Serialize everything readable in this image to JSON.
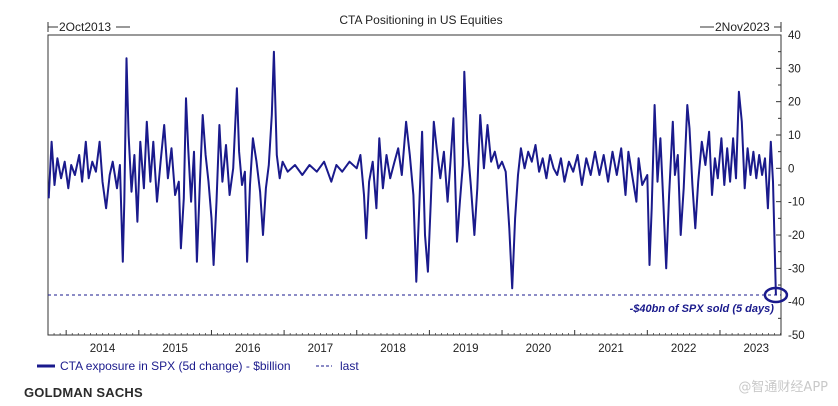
{
  "chart_data": {
    "type": "line",
    "title": "CTA Positioning in US Equities",
    "date_range": {
      "start": "2Oct2013",
      "end": "2Nov2023"
    },
    "xlabel": "",
    "ylabel": "",
    "x_tick_labels": [
      "2014",
      "2015",
      "2016",
      "2017",
      "2018",
      "2019",
      "2020",
      "2021",
      "2022",
      "2023"
    ],
    "y_tick_labels": [
      "40",
      "30",
      "20",
      "10",
      "0",
      "-10",
      "-20",
      "-30",
      "-40",
      "-50"
    ],
    "ylim": [
      -50,
      40
    ],
    "xlim": [
      2013.75,
      2023.84
    ],
    "grid": false,
    "legend_position": "bottom-left",
    "series": [
      {
        "name": "CTA exposure in SPX (5d change) - $billion",
        "color": "#1a1a8c",
        "style": "solid",
        "points": [
          [
            2013.76,
            -9
          ],
          [
            2013.8,
            8
          ],
          [
            2013.84,
            -5
          ],
          [
            2013.88,
            3
          ],
          [
            2013.93,
            -3
          ],
          [
            2013.98,
            2
          ],
          [
            2014.03,
            -6
          ],
          [
            2014.07,
            1
          ],
          [
            2014.12,
            -2
          ],
          [
            2014.18,
            4
          ],
          [
            2014.22,
            -4
          ],
          [
            2014.27,
            8
          ],
          [
            2014.31,
            -3
          ],
          [
            2014.36,
            2
          ],
          [
            2014.41,
            -1
          ],
          [
            2014.46,
            8
          ],
          [
            2014.5,
            -4
          ],
          [
            2014.55,
            -12
          ],
          [
            2014.6,
            -2
          ],
          [
            2014.64,
            2
          ],
          [
            2014.7,
            -6
          ],
          [
            2014.74,
            1
          ],
          [
            2014.78,
            -28
          ],
          [
            2014.8,
            -10
          ],
          [
            2014.83,
            33
          ],
          [
            2014.86,
            10
          ],
          [
            2014.9,
            -7
          ],
          [
            2014.94,
            4
          ],
          [
            2014.98,
            -16
          ],
          [
            2015.02,
            8
          ],
          [
            2015.07,
            -6
          ],
          [
            2015.11,
            14
          ],
          [
            2015.16,
            -4
          ],
          [
            2015.2,
            8
          ],
          [
            2015.25,
            -10
          ],
          [
            2015.3,
            2
          ],
          [
            2015.35,
            13
          ],
          [
            2015.4,
            -3
          ],
          [
            2015.45,
            6
          ],
          [
            2015.5,
            -8
          ],
          [
            2015.55,
            -4
          ],
          [
            2015.58,
            -24
          ],
          [
            2015.62,
            -9
          ],
          [
            2015.65,
            21
          ],
          [
            2015.68,
            6
          ],
          [
            2015.72,
            -10
          ],
          [
            2015.76,
            5
          ],
          [
            2015.8,
            -28
          ],
          [
            2015.84,
            -5
          ],
          [
            2015.88,
            16
          ],
          [
            2015.92,
            4
          ],
          [
            2015.96,
            -4
          ],
          [
            2016.0,
            -15
          ],
          [
            2016.03,
            -29
          ],
          [
            2016.07,
            -10
          ],
          [
            2016.11,
            13
          ],
          [
            2016.15,
            -4
          ],
          [
            2016.2,
            7
          ],
          [
            2016.25,
            -8
          ],
          [
            2016.3,
            0
          ],
          [
            2016.35,
            24
          ],
          [
            2016.38,
            5
          ],
          [
            2016.42,
            -5
          ],
          [
            2016.46,
            -1
          ],
          [
            2016.49,
            -28
          ],
          [
            2016.53,
            -5
          ],
          [
            2016.57,
            9
          ],
          [
            2016.62,
            2
          ],
          [
            2016.67,
            -7
          ],
          [
            2016.71,
            -20
          ],
          [
            2016.75,
            -6
          ],
          [
            2016.79,
            1
          ],
          [
            2016.83,
            16
          ],
          [
            2016.86,
            35
          ],
          [
            2016.9,
            4
          ],
          [
            2016.94,
            -3
          ],
          [
            2016.98,
            2
          ],
          [
            2017.05,
            -1
          ],
          [
            2017.15,
            1
          ],
          [
            2017.25,
            -2
          ],
          [
            2017.35,
            1
          ],
          [
            2017.45,
            -1
          ],
          [
            2017.55,
            2
          ],
          [
            2017.65,
            -4
          ],
          [
            2017.72,
            1
          ],
          [
            2017.8,
            -1
          ],
          [
            2017.9,
            2
          ],
          [
            2018.0,
            0
          ],
          [
            2018.05,
            4
          ],
          [
            2018.1,
            -8
          ],
          [
            2018.13,
            -21
          ],
          [
            2018.17,
            -4
          ],
          [
            2018.22,
            2
          ],
          [
            2018.27,
            -12
          ],
          [
            2018.31,
            9
          ],
          [
            2018.36,
            -6
          ],
          [
            2018.41,
            4
          ],
          [
            2018.46,
            -3
          ],
          [
            2018.52,
            2
          ],
          [
            2018.57,
            6
          ],
          [
            2018.62,
            -2
          ],
          [
            2018.68,
            14
          ],
          [
            2018.73,
            4
          ],
          [
            2018.78,
            -8
          ],
          [
            2018.82,
            -34
          ],
          [
            2018.86,
            -12
          ],
          [
            2018.9,
            11
          ],
          [
            2018.94,
            -20
          ],
          [
            2018.98,
            -31
          ],
          [
            2019.02,
            -10
          ],
          [
            2019.06,
            14
          ],
          [
            2019.1,
            6
          ],
          [
            2019.15,
            -3
          ],
          [
            2019.2,
            5
          ],
          [
            2019.25,
            -10
          ],
          [
            2019.29,
            2
          ],
          [
            2019.33,
            15
          ],
          [
            2019.38,
            -22
          ],
          [
            2019.42,
            -10
          ],
          [
            2019.46,
            1
          ],
          [
            2019.48,
            29
          ],
          [
            2019.52,
            8
          ],
          [
            2019.57,
            -5
          ],
          [
            2019.62,
            -20
          ],
          [
            2019.66,
            -6
          ],
          [
            2019.7,
            16
          ],
          [
            2019.75,
            0
          ],
          [
            2019.8,
            13
          ],
          [
            2019.85,
            2
          ],
          [
            2019.9,
            5
          ],
          [
            2019.95,
            0
          ],
          [
            2020.0,
            2
          ],
          [
            2020.05,
            -1
          ],
          [
            2020.1,
            -18
          ],
          [
            2020.14,
            -36
          ],
          [
            2020.18,
            -15
          ],
          [
            2020.22,
            -2
          ],
          [
            2020.26,
            6
          ],
          [
            2020.31,
            0
          ],
          [
            2020.36,
            5
          ],
          [
            2020.41,
            2
          ],
          [
            2020.46,
            7
          ],
          [
            2020.51,
            -1
          ],
          [
            2020.56,
            3
          ],
          [
            2020.61,
            -3
          ],
          [
            2020.66,
            4
          ],
          [
            2020.71,
            0
          ],
          [
            2020.76,
            -2
          ],
          [
            2020.81,
            3
          ],
          [
            2020.86,
            -4
          ],
          [
            2020.92,
            2
          ],
          [
            2020.98,
            -1
          ],
          [
            2021.04,
            4
          ],
          [
            2021.1,
            -5
          ],
          [
            2021.16,
            3
          ],
          [
            2021.22,
            -2
          ],
          [
            2021.28,
            5
          ],
          [
            2021.34,
            -2
          ],
          [
            2021.4,
            4
          ],
          [
            2021.46,
            -4
          ],
          [
            2021.52,
            5
          ],
          [
            2021.58,
            -2
          ],
          [
            2021.64,
            6
          ],
          [
            2021.7,
            -8
          ],
          [
            2021.74,
            5
          ],
          [
            2021.79,
            -2
          ],
          [
            2021.85,
            -10
          ],
          [
            2021.88,
            3
          ],
          [
            2021.93,
            -5
          ],
          [
            2022.0,
            -2
          ],
          [
            2022.03,
            -29
          ],
          [
            2022.06,
            -12
          ],
          [
            2022.1,
            19
          ],
          [
            2022.14,
            -4
          ],
          [
            2022.18,
            9
          ],
          [
            2022.22,
            -10
          ],
          [
            2022.26,
            -30
          ],
          [
            2022.3,
            -8
          ],
          [
            2022.35,
            14
          ],
          [
            2022.38,
            -2
          ],
          [
            2022.42,
            4
          ],
          [
            2022.46,
            -20
          ],
          [
            2022.5,
            -6
          ],
          [
            2022.55,
            19
          ],
          [
            2022.58,
            12
          ],
          [
            2022.62,
            -5
          ],
          [
            2022.66,
            -18
          ],
          [
            2022.7,
            -4
          ],
          [
            2022.75,
            8
          ],
          [
            2022.8,
            1
          ],
          [
            2022.85,
            11
          ],
          [
            2022.89,
            -8
          ],
          [
            2022.93,
            3
          ],
          [
            2022.97,
            -3
          ],
          [
            2023.02,
            9
          ],
          [
            2023.06,
            -5
          ],
          [
            2023.1,
            6
          ],
          [
            2023.14,
            -4
          ],
          [
            2023.18,
            9
          ],
          [
            2023.22,
            -3
          ],
          [
            2023.26,
            23
          ],
          [
            2023.3,
            14
          ],
          [
            2023.34,
            -6
          ],
          [
            2023.38,
            6
          ],
          [
            2023.42,
            -2
          ],
          [
            2023.46,
            5
          ],
          [
            2023.5,
            -3
          ],
          [
            2023.54,
            4
          ],
          [
            2023.58,
            -2
          ],
          [
            2023.62,
            3
          ],
          [
            2023.66,
            -12
          ],
          [
            2023.7,
            8
          ],
          [
            2023.73,
            -4
          ],
          [
            2023.77,
            -38
          ]
        ]
      },
      {
        "name": "last",
        "color": "#1a1a8c",
        "style": "dashed",
        "value": -38
      }
    ],
    "annotations": [
      {
        "text": "-$40bn of SPX sold (5 days)",
        "x": 2023.77,
        "y": -38
      }
    ]
  },
  "footer": {
    "source": "GOLDMAN SACHS"
  },
  "watermark": {
    "text": "@智通财经APP"
  }
}
